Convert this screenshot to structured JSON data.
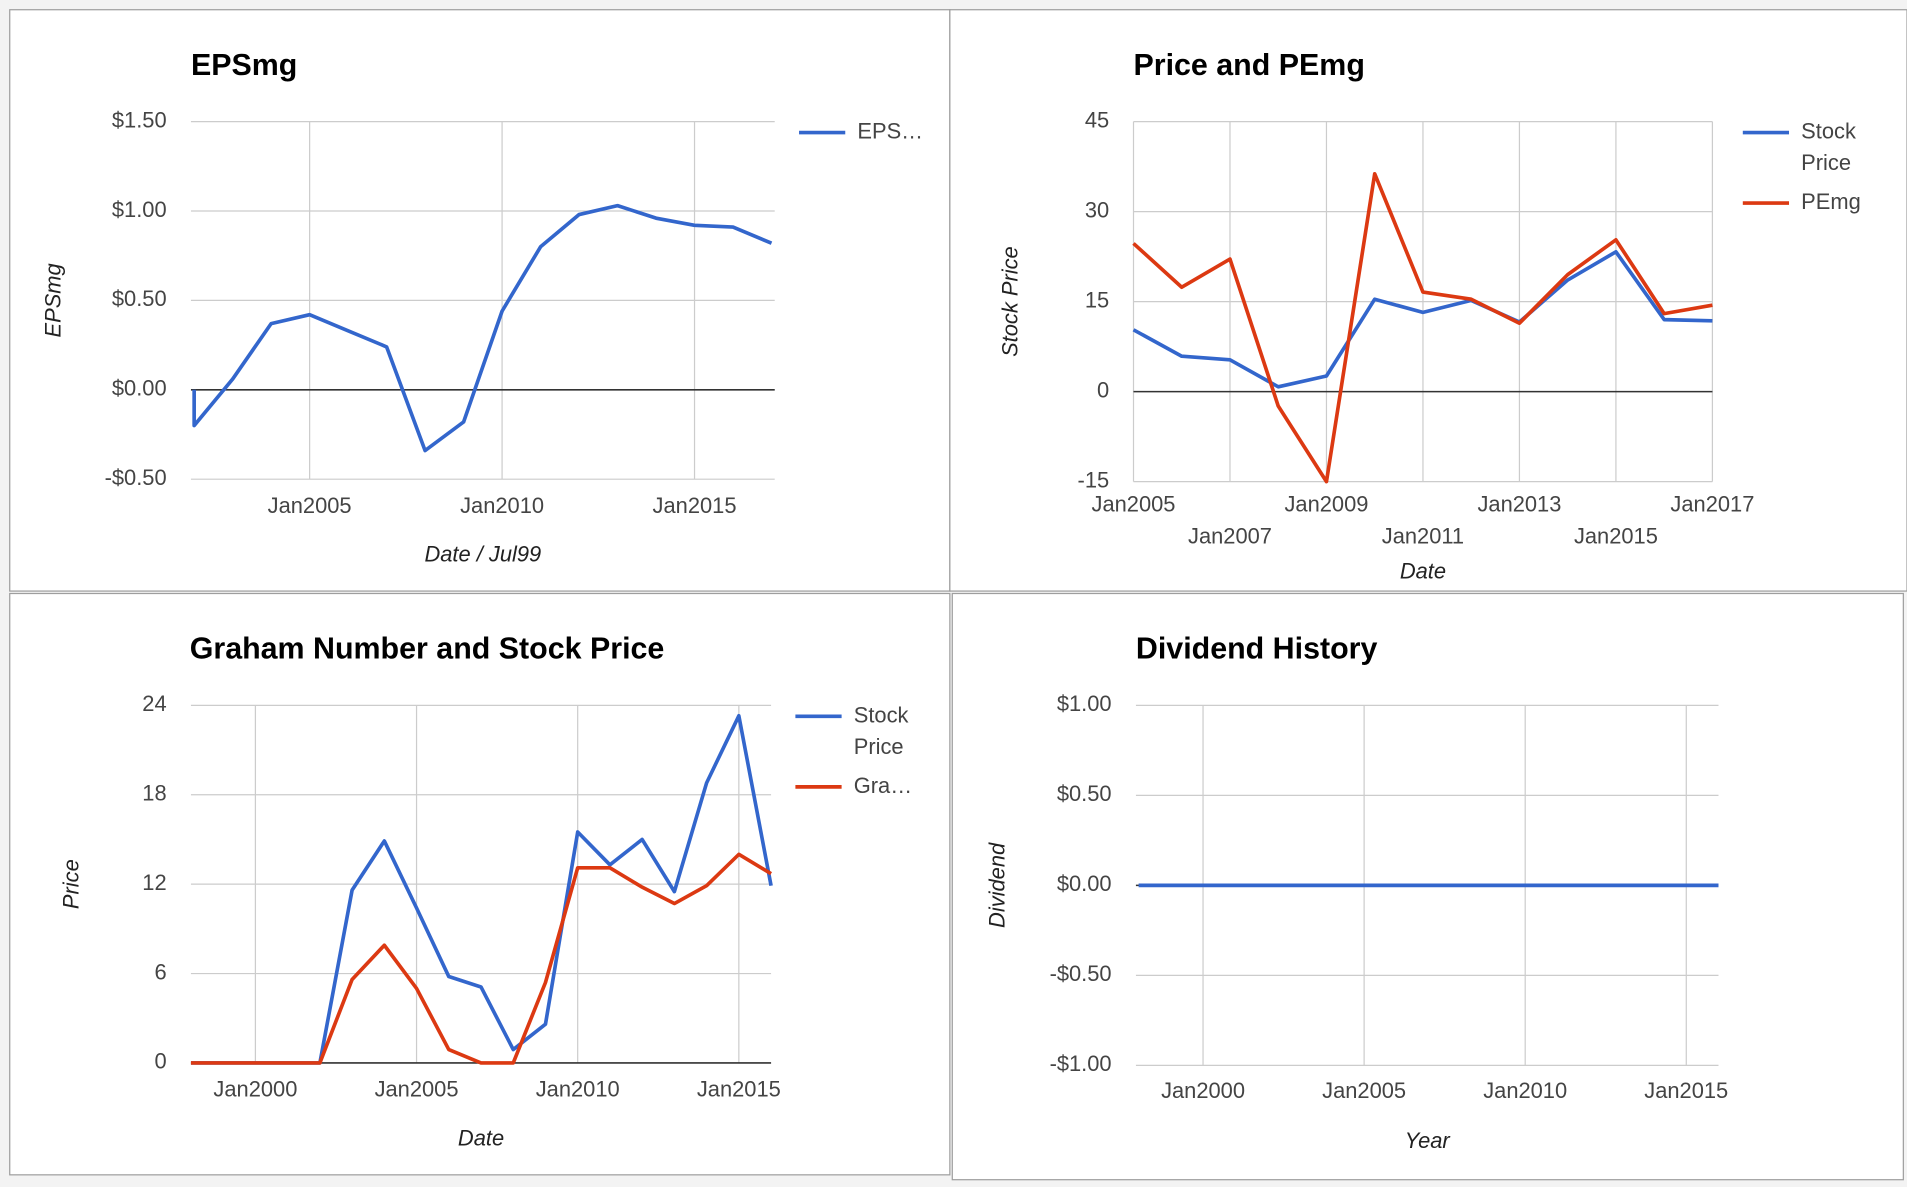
{
  "chart_data": [
    {
      "type": "line",
      "title": "EPSmg",
      "x_label": "Date / Jul99",
      "y_label": "EPSmg",
      "x": [
        "Jan2002",
        "Jan2002",
        "Jan2003",
        "Jan2004",
        "Jan2005",
        "Jan2006",
        "Jan2007",
        "Jan2008",
        "Jan2009",
        "Jan2010",
        "Jan2011",
        "Jan2012",
        "Jan2013",
        "Jan2014",
        "Jan2015",
        "Jan2016",
        "Jan2017"
      ],
      "series": [
        {
          "name": "EPS…",
          "color": "#3366cc",
          "values": [
            0.0,
            -0.2,
            0.06,
            0.37,
            0.42,
            0.33,
            0.24,
            -0.34,
            -0.18,
            0.44,
            0.8,
            0.98,
            1.03,
            0.96,
            0.92,
            0.91,
            0.82
          ]
        }
      ],
      "xlim": [
        "Dec2001",
        "Feb2017"
      ],
      "xticks": [
        "Jan2005",
        "Jan2010",
        "Jan2015"
      ],
      "ylim": [
        -0.5,
        1.5
      ],
      "yticks": [
        {
          "value": -0.5,
          "label": "-$0.50"
        },
        {
          "value": 0,
          "label": "$0.00"
        },
        {
          "value": 0.5,
          "label": "$0.50"
        },
        {
          "value": 1,
          "label": "$1.00"
        },
        {
          "value": 1.5,
          "label": "$1.50"
        }
      ],
      "grid": true,
      "legend": "right"
    },
    {
      "type": "line",
      "title": "Price and PEmg",
      "x_label": "Date",
      "y_label": "Stock Price",
      "x": [
        "Jan2005",
        "Jan2006",
        "Jan2007",
        "Jan2008",
        "Jan2009",
        "Jan2010",
        "Jan2011",
        "Jan2012",
        "Jan2013",
        "Jan2014",
        "Jan2015",
        "Jan2016",
        "Jan2017"
      ],
      "series": [
        {
          "name": "Stock Price",
          "color": "#3366cc",
          "values": [
            10.3,
            5.9,
            5.3,
            0.8,
            2.6,
            15.4,
            13.2,
            15.2,
            11.6,
            18.6,
            23.3,
            12.0,
            11.8
          ]
        },
        {
          "name": "PEmg",
          "color": "#dc3912",
          "values": [
            24.7,
            17.4,
            22.1,
            -2.4,
            -15,
            36.3,
            16.6,
            15.4,
            11.4,
            19.5,
            25.3,
            13.0,
            14.4
          ]
        }
      ],
      "xlim": [
        "Jan2005",
        "Jan2017"
      ],
      "xticks": [
        "Jan2005",
        "Jan2007",
        "Jan2009",
        "Jan2011",
        "Jan2013",
        "Jan2015",
        "Jan2017"
      ],
      "ylim": [
        -15,
        45
      ],
      "yticks": [
        -15,
        0,
        15,
        30,
        45
      ],
      "grid": true,
      "legend": "right"
    },
    {
      "type": "line",
      "title": "Graham Number and Stock Price",
      "x_label": "Date",
      "y_label": "Price",
      "x": [
        "Jan1998",
        "Jan1999",
        "Jan2000",
        "Jan2001",
        "Jan2002",
        "Jan2003",
        "Jan2004",
        "Jan2005",
        "Jan2006",
        "Jan2007",
        "Jan2008",
        "Jan2009",
        "Jan2010",
        "Jan2011",
        "Jan2012",
        "Jan2013",
        "Jan2014",
        "Jan2015",
        "Jan2016"
      ],
      "series": [
        {
          "name": "Stock Price",
          "color": "#3366cc",
          "values": [
            0,
            0,
            0,
            0,
            0,
            11.6,
            14.9,
            10.4,
            5.8,
            5.1,
            0.9,
            2.6,
            15.5,
            13.3,
            15.0,
            11.5,
            18.8,
            23.3,
            11.9
          ]
        },
        {
          "name": "Gra…",
          "color": "#dc3912",
          "values": [
            0,
            0,
            0,
            0,
            0,
            5.6,
            7.9,
            5.0,
            0.9,
            0,
            0,
            5.4,
            13.1,
            13.1,
            11.8,
            10.7,
            11.9,
            14.0,
            12.7
          ]
        }
      ],
      "xlim": [
        "Jan1998",
        "Jan2016"
      ],
      "xticks": [
        "Jan2000",
        "Jan2005",
        "Jan2010",
        "Jan2015"
      ],
      "ylim": [
        0,
        24
      ],
      "yticks": [
        0,
        6,
        12,
        18,
        24
      ],
      "grid": true,
      "legend": "right"
    },
    {
      "type": "line",
      "title": "Dividend History",
      "x_label": "Year",
      "y_label": "Dividend",
      "x": [
        "Jan1998",
        "Jan1999",
        "Jan2000",
        "Jan2001",
        "Jan2002",
        "Jan2003",
        "Jan2004",
        "Jan2005",
        "Jan2006",
        "Jan2007",
        "Jan2008",
        "Jan2009",
        "Jan2010",
        "Jan2011",
        "Jan2012",
        "Jan2013",
        "Jan2014",
        "Jan2015",
        "Jan2016"
      ],
      "series": [
        {
          "color": "#3366cc",
          "values": [
            0,
            0,
            0,
            0,
            0,
            0,
            0,
            0,
            0,
            0,
            0,
            0,
            0,
            0,
            0,
            0,
            0,
            0,
            0
          ]
        }
      ],
      "xlim": [
        "Dec1997",
        "Jan2016"
      ],
      "xticks": [
        "Jan2000",
        "Jan2005",
        "Jan2010",
        "Jan2015"
      ],
      "ylim": [
        -1,
        1
      ],
      "yticks": [
        {
          "value": -1,
          "label": "-$1.00"
        },
        {
          "value": -0.5,
          "label": "-$0.50"
        },
        {
          "value": 0,
          "label": "$0.00"
        },
        {
          "value": 0.5,
          "label": "$0.50"
        },
        {
          "value": 1,
          "label": "$1.00"
        }
      ],
      "grid": true
    }
  ]
}
